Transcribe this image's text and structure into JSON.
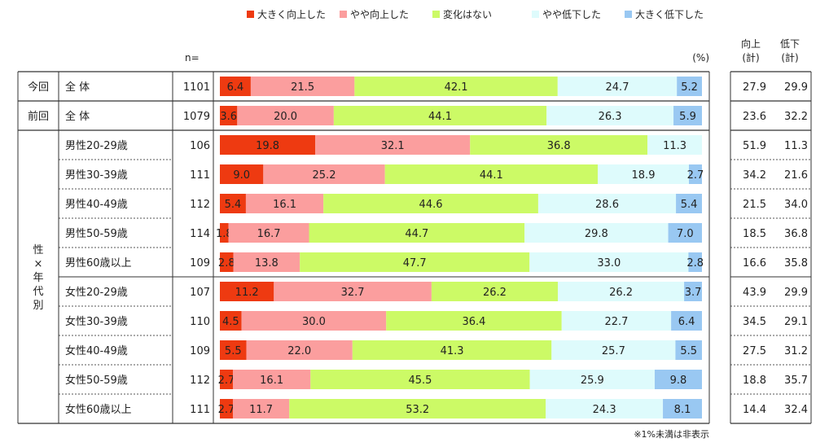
{
  "chart_data": {
    "type": "bar",
    "stacked": true,
    "orientation": "horizontal",
    "unit_label": "(%)",
    "n_header": "n=",
    "sum_headers": [
      [
        "向上",
        "(計)"
      ],
      [
        "低下",
        "(計)"
      ]
    ],
    "footnote": "※1%未満は非表示",
    "legend_position": "top",
    "series": [
      {
        "name": "大きく向上した",
        "color": "#ee3a11"
      },
      {
        "name": "やや向上した",
        "color": "#fb9e9e"
      },
      {
        "name": "変化はない",
        "color": "#ccfa66"
      },
      {
        "name": "やや低下した",
        "color": "#defbfc"
      },
      {
        "name": "大きく低下した",
        "color": "#99c8f2"
      }
    ],
    "groups": [
      {
        "label": [
          "今回"
        ],
        "rows": [
          {
            "label": "全 体",
            "n": 1101,
            "values": [
              6.4,
              21.5,
              42.1,
              24.7,
              5.2
            ],
            "up": 27.9,
            "down": 29.9
          }
        ]
      },
      {
        "label": [
          "前回"
        ],
        "rows": [
          {
            "label": "全 体",
            "n": 1079,
            "values": [
              3.6,
              20.0,
              44.1,
              26.3,
              5.9
            ],
            "up": 23.6,
            "down": 32.2
          }
        ]
      },
      {
        "label": [
          "性",
          "×",
          "年",
          "代",
          "別"
        ],
        "rows": [
          {
            "label": "男性20-29歳",
            "n": 106,
            "values": [
              19.8,
              32.1,
              36.8,
              11.3,
              0
            ],
            "up": 51.9,
            "down": 11.3
          },
          {
            "label": "男性30-39歳",
            "n": 111,
            "values": [
              9.0,
              25.2,
              44.1,
              18.9,
              2.7
            ],
            "up": 34.2,
            "down": 21.6
          },
          {
            "label": "男性40-49歳",
            "n": 112,
            "values": [
              5.4,
              16.1,
              44.6,
              28.6,
              5.4
            ],
            "up": 21.5,
            "down": 34.0
          },
          {
            "label": "男性50-59歳",
            "n": 114,
            "values": [
              1.8,
              16.7,
              44.7,
              29.8,
              7.0
            ],
            "up": 18.5,
            "down": 36.8
          },
          {
            "label": "男性60歳以上",
            "n": 109,
            "values": [
              2.8,
              13.8,
              47.7,
              33.0,
              2.8
            ],
            "up": 16.6,
            "down": 35.8
          },
          {
            "label": "女性20-29歳",
            "n": 107,
            "values": [
              11.2,
              32.7,
              26.2,
              26.2,
              3.7
            ],
            "up": 43.9,
            "down": 29.9
          },
          {
            "label": "女性30-39歳",
            "n": 110,
            "values": [
              4.5,
              30.0,
              36.4,
              22.7,
              6.4
            ],
            "up": 34.5,
            "down": 29.1
          },
          {
            "label": "女性40-49歳",
            "n": 109,
            "values": [
              5.5,
              22.0,
              41.3,
              25.7,
              5.5
            ],
            "up": 27.5,
            "down": 31.2
          },
          {
            "label": "女性50-59歳",
            "n": 112,
            "values": [
              2.7,
              16.1,
              45.5,
              25.9,
              9.8
            ],
            "up": 18.8,
            "down": 35.7
          },
          {
            "label": "女性60歳以上",
            "n": 111,
            "values": [
              2.7,
              11.7,
              53.2,
              24.3,
              8.1
            ],
            "up": 14.4,
            "down": 32.4
          }
        ]
      }
    ]
  }
}
